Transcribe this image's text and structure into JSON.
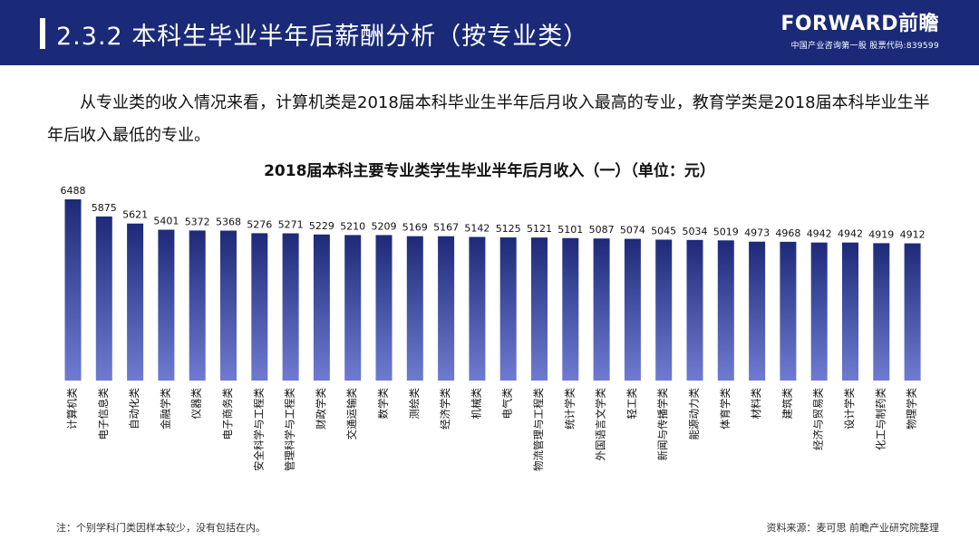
{
  "header": {
    "title": "2.3.2 本科生毕业半年后薪酬分析（按专业类）",
    "logo_text": "FORWARD前瞻",
    "logo_sub": "中国产业咨询第一股 股票代码:839599"
  },
  "intro": {
    "text": "从专业类的收入情况来看，计算机类是2018届本科毕业生半年后月收入最高的专业，教育学类是2018届本科毕业生半年后收入最低的专业。"
  },
  "colors": {
    "header_bg": "#1a2a78",
    "bar_top": "#1e2a78",
    "bar_bottom": "#6f7bd0"
  },
  "chart_data": {
    "type": "bar",
    "title": "2018届本科主要专业类学生毕业半年后月收入（一）（单位：元）",
    "categories": [
      "计算机类",
      "电子信息类",
      "自动化类",
      "金融学类",
      "仪器类",
      "电子商务类",
      "安全科学与工程类",
      "管理科学与工程类",
      "财政学类",
      "交通运输类",
      "数学类",
      "测绘类",
      "经济学类",
      "机械类",
      "电气类",
      "物流管理与工程类",
      "统计学类",
      "外国语言文学类",
      "轻工类",
      "新闻与传播学类",
      "能源动力类",
      "体育学类",
      "材料类",
      "建筑类",
      "经济与贸易类",
      "设计学类",
      "化工与制药类",
      "物理学类"
    ],
    "values": [
      6488,
      5875,
      5621,
      5401,
      5372,
      5368,
      5276,
      5271,
      5229,
      5210,
      5209,
      5169,
      5167,
      5142,
      5125,
      5121,
      5101,
      5087,
      5074,
      5045,
      5034,
      5019,
      4973,
      4968,
      4942,
      4942,
      4919,
      4912
    ],
    "ylim": [
      0,
      6488
    ],
    "xlabel": "",
    "ylabel": ""
  },
  "footer": {
    "note": "注：个别学科门类因样本较少，没有包括在内。",
    "source": "资料来源：麦可思 前瞻产业研究院整理"
  }
}
